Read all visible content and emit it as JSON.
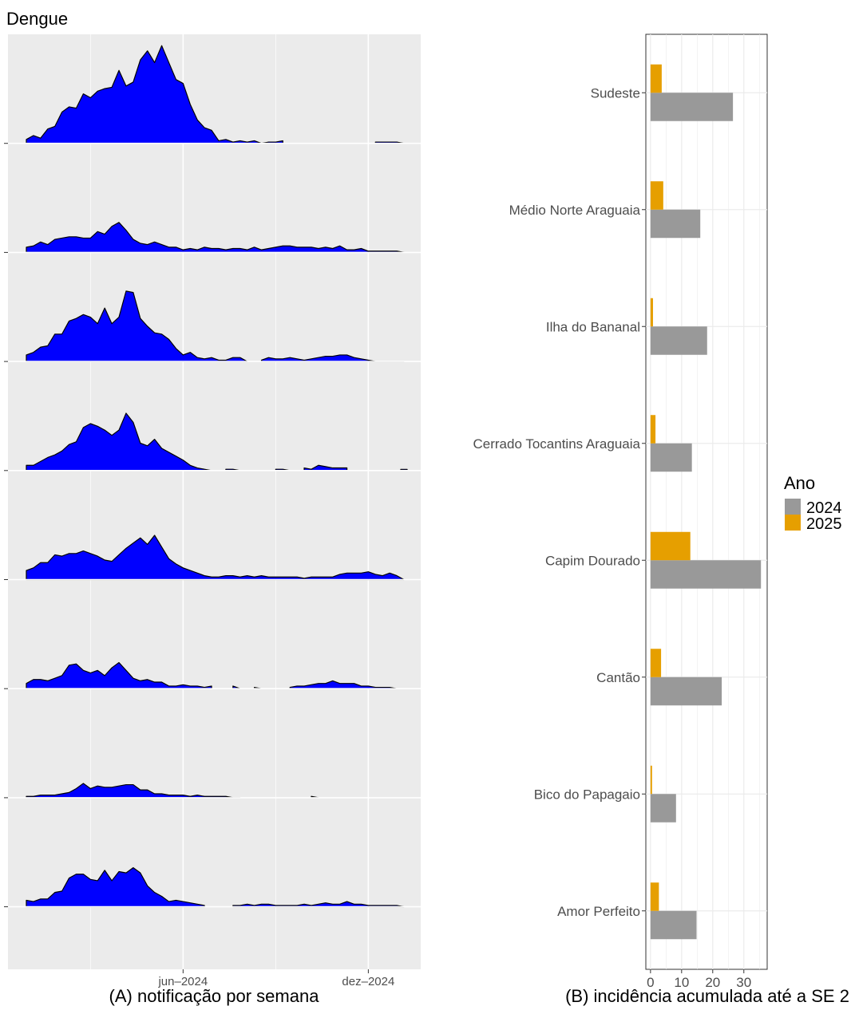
{
  "title": "Dengue",
  "colors": {
    "area_fill": "#0000ff",
    "panel_bg": "#ebebeb",
    "y2024": "#999999",
    "y2025": "#e69f00"
  },
  "chart_data": [
    {
      "type": "area",
      "caption": "(A) notificação por semana",
      "x_tick_labels": [
        "jun–2024",
        "dez–2024"
      ],
      "x_tick_weeks": [
        22,
        48
      ],
      "n_weeks": 54,
      "shared_y_max": 30,
      "series": [
        {
          "values": [
            1.5,
            3,
            2,
            5.5,
            6.5,
            12,
            14,
            13.5,
            19,
            17.5,
            20,
            21,
            21.5,
            28,
            22,
            23.5,
            32,
            35.5,
            31,
            37.5,
            31,
            24.5,
            23,
            15,
            9,
            6,
            5,
            1,
            1.5,
            0.5,
            1,
            0.5,
            1,
            0,
            0.5,
            0.5,
            1,
            null,
            null,
            null,
            null,
            null,
            null,
            null,
            null,
            null,
            null,
            null,
            null,
            0.5,
            0.5,
            0.5,
            0.5,
            0
          ]
        },
        {
          "values": [
            2,
            2.5,
            4,
            3,
            5,
            5.5,
            6,
            6,
            5.5,
            5.5,
            8,
            7,
            10,
            11.5,
            8.5,
            5,
            3.5,
            3,
            4,
            3,
            2,
            2,
            1,
            1.5,
            1,
            2,
            1.5,
            1.5,
            1,
            1.5,
            1.5,
            1,
            2,
            1,
            1.5,
            2,
            2.5,
            2.5,
            2,
            2,
            2,
            1.5,
            2,
            1.5,
            2.5,
            1,
            1,
            1.5,
            0.5,
            0.5,
            0.5,
            0.5,
            0.5,
            0
          ]
        },
        {
          "values": [
            2.5,
            3.5,
            5.5,
            6,
            10.5,
            10.5,
            15.5,
            16.5,
            18,
            17,
            14.5,
            20.5,
            14.5,
            17,
            27,
            26.5,
            16.5,
            13.5,
            11,
            10.5,
            8.5,
            5,
            2.5,
            3.5,
            1.5,
            1,
            1.5,
            0.5,
            0.5,
            1.5,
            1.5,
            0,
            null,
            0.5,
            1.5,
            1,
            1,
            1.5,
            1,
            0.5,
            1,
            1.5,
            2,
            2,
            2.5,
            2.5,
            1.5,
            1,
            0.5,
            0,
            0,
            0,
            0,
            0
          ]
        },
        {
          "values": [
            2,
            2,
            3.5,
            5,
            6,
            7.5,
            10,
            11,
            16.5,
            18,
            17,
            15.5,
            13.5,
            15.5,
            22,
            18.5,
            10.5,
            9.5,
            12,
            8.5,
            7,
            5.5,
            4,
            2,
            1,
            0.5,
            0,
            null,
            0.5,
            0.5,
            0,
            null,
            null,
            null,
            null,
            0.5,
            0.5,
            0,
            null,
            1,
            0.5,
            2,
            1.5,
            1,
            1,
            1,
            null,
            null,
            null,
            null,
            null,
            null,
            null,
            0
          ]
        },
        {
          "values": [
            3.5,
            4.5,
            6.5,
            6.5,
            9.5,
            9,
            10,
            10,
            11,
            10,
            9,
            7.5,
            7,
            9.5,
            12,
            14,
            16,
            13.5,
            17,
            12.5,
            8,
            6,
            4.5,
            3.5,
            2.5,
            1.5,
            1,
            1,
            1.5,
            1.5,
            1,
            1.5,
            1,
            1.5,
            1,
            1,
            1,
            1,
            1,
            0.5,
            1,
            1,
            1,
            1,
            2,
            2.5,
            2.5,
            2.5,
            3,
            2,
            1.5,
            2.5,
            1.5,
            0
          ]
        },
        {
          "values": [
            2,
            3.5,
            3.5,
            3,
            4,
            5,
            9,
            9.5,
            7,
            6,
            7,
            5,
            8,
            10,
            7,
            4,
            3,
            3.5,
            2.5,
            2.5,
            1,
            1,
            1.5,
            1,
            1,
            0.5,
            1,
            null,
            null,
            1,
            0,
            null,
            0.5,
            0,
            null,
            null,
            null,
            0.5,
            1,
            1,
            1.5,
            2,
            2,
            3,
            2,
            2,
            2,
            1,
            1,
            0.5,
            0.5,
            0.5,
            0,
            0
          ]
        },
        {
          "values": [
            0.5,
            0.5,
            1,
            1,
            1,
            1.5,
            2,
            3.5,
            5.5,
            3.5,
            4.5,
            4,
            4,
            4.5,
            5,
            5,
            3,
            3,
            1.5,
            1.5,
            1,
            1,
            1,
            0.5,
            1,
            0.5,
            0.5,
            0.5,
            0.5,
            0,
            0,
            null,
            null,
            null,
            null,
            null,
            null,
            null,
            null,
            null,
            0.5,
            0,
            null,
            null,
            null,
            null,
            null,
            null,
            null,
            null,
            null,
            null,
            null,
            null
          ]
        },
        {
          "values": [
            2.5,
            2,
            3,
            3,
            5.5,
            6,
            11,
            12.5,
            12.5,
            10.5,
            10,
            14,
            10,
            13.5,
            13,
            15,
            13,
            8,
            5.5,
            4,
            2,
            2.5,
            2,
            1.5,
            1,
            0.5,
            null,
            null,
            null,
            0.5,
            0.5,
            1,
            0.5,
            1,
            1,
            0.5,
            0.5,
            0.5,
            0.5,
            1,
            0.5,
            1,
            1.5,
            1,
            1,
            2,
            1,
            1,
            0.5,
            0.5,
            0.5,
            0.5,
            0.5,
            0
          ]
        }
      ]
    },
    {
      "type": "bar",
      "orientation": "horizontal",
      "caption": "(B) incidência acumulada até a SE 2",
      "categories": [
        "Sudeste",
        "Médio Norte Araguaia",
        "Ilha do Bananal",
        "Cerrado Tocantins Araguaia",
        "Capim Dourado",
        "Cantão",
        "Bico do Papagaio",
        "Amor Perfeito"
      ],
      "series": [
        {
          "name": "2024",
          "values": [
            26.5,
            16,
            18.2,
            13.3,
            35.5,
            22.9,
            8.2,
            14.8
          ]
        },
        {
          "name": "2025",
          "values": [
            3.6,
            4.1,
            0.8,
            1.6,
            12.8,
            3.4,
            0.5,
            2.7
          ]
        }
      ],
      "x_ticks": [
        0,
        10,
        20,
        30
      ],
      "xlim": [
        -1.5,
        37.5
      ],
      "legend_title": "Ano",
      "legend_placement": "right"
    }
  ]
}
